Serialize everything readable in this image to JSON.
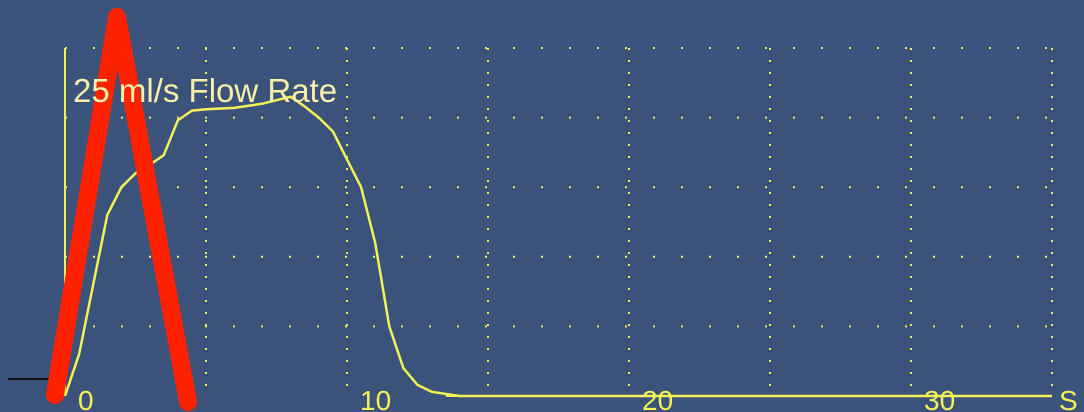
{
  "colors": {
    "background": "#3b527b",
    "curve": "#f2f256",
    "grid": "#f2f256",
    "axis": "#f2f256",
    "title": "#f6f0a8",
    "ticks": "#f2f256",
    "overlay": "#ff2200",
    "baseline_left": "#111111"
  },
  "chart_data": {
    "type": "line",
    "title": "25 ml/s Flow Rate",
    "x_unit_label": "S",
    "x_ticks": [
      "0",
      "10",
      "20",
      "30"
    ],
    "xlim": [
      0,
      35
    ],
    "ylim": [
      0,
      25
    ],
    "grid": "dotted",
    "series": [
      {
        "values": [
          [
            0,
            0
          ],
          [
            0.5,
            3
          ],
          [
            1,
            8
          ],
          [
            1.5,
            13
          ],
          [
            2,
            15
          ],
          [
            2.5,
            16
          ],
          [
            3,
            16.6
          ],
          [
            3.5,
            17.3
          ],
          [
            4,
            19.8
          ],
          [
            4.5,
            20.5
          ],
          [
            5,
            20.6
          ],
          [
            6,
            20.7
          ],
          [
            7,
            21
          ],
          [
            8,
            21.5
          ],
          [
            8.5,
            20.8
          ],
          [
            9,
            20
          ],
          [
            9.5,
            19
          ],
          [
            10,
            17
          ],
          [
            10.5,
            15
          ],
          [
            11,
            11
          ],
          [
            11.5,
            5
          ],
          [
            12,
            2
          ],
          [
            12.5,
            0.8
          ],
          [
            13,
            0.3
          ],
          [
            14,
            0
          ],
          [
            35,
            0
          ]
        ]
      }
    ]
  }
}
